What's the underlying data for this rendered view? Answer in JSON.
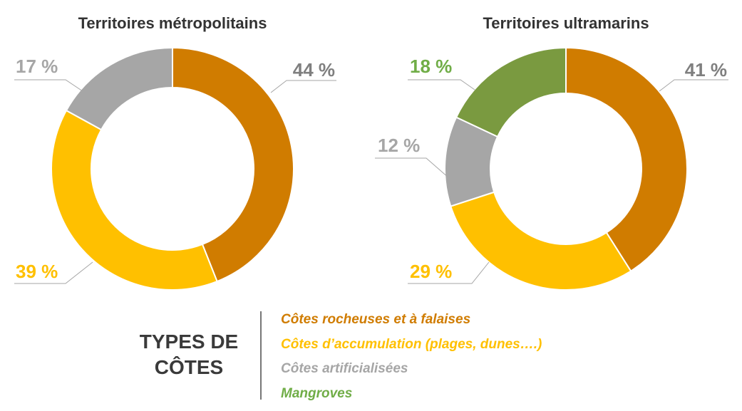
{
  "chart_data": [
    {
      "type": "pie",
      "variant": "donut",
      "title": "Territoires métropolitains",
      "categories": [
        "Côtes rocheuses et à falaises",
        "Côtes d'accumulation (plages, dunes….)",
        "Côtes artificialisées"
      ],
      "values": [
        44,
        39,
        17
      ],
      "labels": [
        "44 %",
        "39 %",
        "17 %"
      ],
      "colors": [
        "#D07C00",
        "#FFC000",
        "#A6A6A6"
      ],
      "label_colors": [
        "#7F7F7F",
        "#FFC000",
        "#A6A6A6"
      ]
    },
    {
      "type": "pie",
      "variant": "donut",
      "title": "Territoires ultramarins",
      "categories": [
        "Côtes rocheuses et à falaises",
        "Côtes d'accumulation (plages, dunes….)",
        "Côtes artificialisées",
        "Mangroves"
      ],
      "values": [
        41,
        29,
        12,
        18
      ],
      "labels": [
        "41 %",
        "29 %",
        "12 %",
        "18 %"
      ],
      "colors": [
        "#D07C00",
        "#FFC000",
        "#A6A6A6",
        "#7A9A40"
      ],
      "label_colors": [
        "#7F7F7F",
        "#FFC000",
        "#A6A6A6",
        "#70AD47"
      ]
    }
  ],
  "legend": {
    "title_line1": "TYPES DE",
    "title_line2": "CÔTES",
    "items": [
      {
        "label": "Côtes rocheuses et à falaises",
        "color": "#D07C00"
      },
      {
        "label": "Côtes d’accumulation (plages, dunes….)",
        "color": "#FFC000"
      },
      {
        "label": "Côtes artificialisées",
        "color": "#A6A6A6"
      },
      {
        "label": "Mangroves",
        "color": "#70AD47"
      }
    ]
  }
}
